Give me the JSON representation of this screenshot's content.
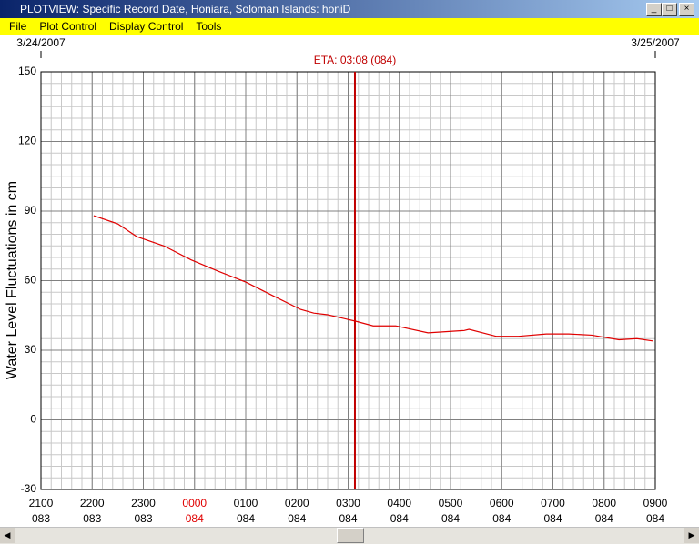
{
  "window": {
    "title": "PLOTVIEW: Specific Record Date, Honiara, Soloman Islands: honiD"
  },
  "menu": [
    "File",
    "Plot Control",
    "Display Control",
    "Tools"
  ],
  "chart_data": {
    "type": "line",
    "start_date": "3/24/2007",
    "end_date": "3/25/2007",
    "y_label": "Water Level Fluctuations in cm",
    "annotation": {
      "text": "ETA: 03:08 (084)",
      "x": 6.133,
      "color": "#c00000"
    },
    "x": [
      1.03,
      1.5,
      1.87,
      2.4,
      2.93,
      3.47,
      4.0,
      4.53,
      5.07,
      5.33,
      5.6,
      6.15,
      6.49,
      6.93,
      7.56,
      8.27,
      8.36,
      8.89,
      9.33,
      9.87,
      10.31,
      10.76,
      11.29,
      11.64,
      11.95
    ],
    "series": [
      {
        "color": "#e00000",
        "values": [
          88,
          84.5,
          79,
          75,
          69,
          64,
          59.4,
          53.5,
          47.6,
          46,
          45.3,
          42.5,
          40.5,
          40.5,
          37.5,
          38.5,
          39,
          36,
          36,
          37,
          37,
          36.5,
          34.5,
          35,
          34
        ]
      }
    ],
    "xlim": [
      0,
      12
    ],
    "ylim": [
      -30,
      150
    ],
    "xticks": [
      {
        "value": 0,
        "label": "2100"
      },
      {
        "value": 1,
        "label": "2200"
      },
      {
        "value": 2,
        "label": "2300"
      },
      {
        "value": 3,
        "label": "0000"
      },
      {
        "value": 4,
        "label": "0100"
      },
      {
        "value": 5,
        "label": "0200"
      },
      {
        "value": 6,
        "label": "0300"
      },
      {
        "value": 7,
        "label": "0400"
      },
      {
        "value": 8,
        "label": "0500"
      },
      {
        "value": 9,
        "label": "0600"
      },
      {
        "value": 10,
        "label": "0700"
      },
      {
        "value": 11,
        "label": "0800"
      },
      {
        "value": 12,
        "label": "0900"
      }
    ],
    "xtick_days": [
      "083",
      "083",
      "083",
      "084",
      "084",
      "084",
      "084",
      "084",
      "084",
      "084",
      "084",
      "084",
      "084"
    ],
    "highlight_tick_index": 3,
    "highlight_color": "#e00000",
    "yticks": [
      -30,
      0,
      30,
      60,
      90,
      120,
      150
    ],
    "x_minor_step": 0.2,
    "y_minor_step": 5,
    "grid": true
  }
}
